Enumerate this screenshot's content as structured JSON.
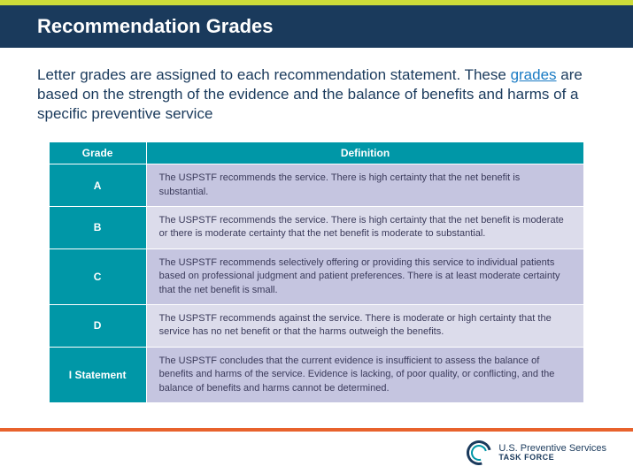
{
  "colors": {
    "accent_top": "#cddc39",
    "title_bar_bg": "#1a3a5c",
    "title_text": "#ffffff",
    "intro_text": "#1a3a5c",
    "link": "#1a7bc4",
    "table_header_bg": "#0097a7",
    "row_odd_bg": "#c5c5e0",
    "row_even_bg": "#dcdceb",
    "def_text": "#3a3a5a",
    "orange_bar": "#e8622c"
  },
  "title": "Recommendation Grades",
  "intro_before_link": "Letter grades are assigned to each recommendation statement. These ",
  "intro_link": "grades",
  "intro_after_link": " are based on the strength of the evidence and the balance of benefits and harms of a specific preventive service",
  "table": {
    "columns": [
      "Grade",
      "Definition"
    ],
    "rows": [
      {
        "grade": "A",
        "definition": "The USPSTF recommends the service. There is high certainty that the net benefit is substantial."
      },
      {
        "grade": "B",
        "definition": "The USPSTF recommends the service. There is high certainty that the net benefit is moderate or there is moderate certainty that the net benefit is moderate to substantial."
      },
      {
        "grade": "C",
        "definition": "The USPSTF recommends selectively offering or providing this service to individual patients based on professional judgment and patient preferences. There is at least moderate certainty that the net benefit is small."
      },
      {
        "grade": "D",
        "definition": "The USPSTF recommends against the service. There is moderate or high certainty that the service has no net benefit or that the harms outweigh the benefits."
      },
      {
        "grade": "I Statement",
        "definition": "The USPSTF concludes that the current evidence is insufficient to assess the balance of benefits and harms of the service. Evidence is lacking, of poor quality, or conflicting, and the balance of benefits and harms cannot be determined."
      }
    ]
  },
  "footer": {
    "line1": "U.S. Preventive Services",
    "line2": "TASK FORCE"
  }
}
